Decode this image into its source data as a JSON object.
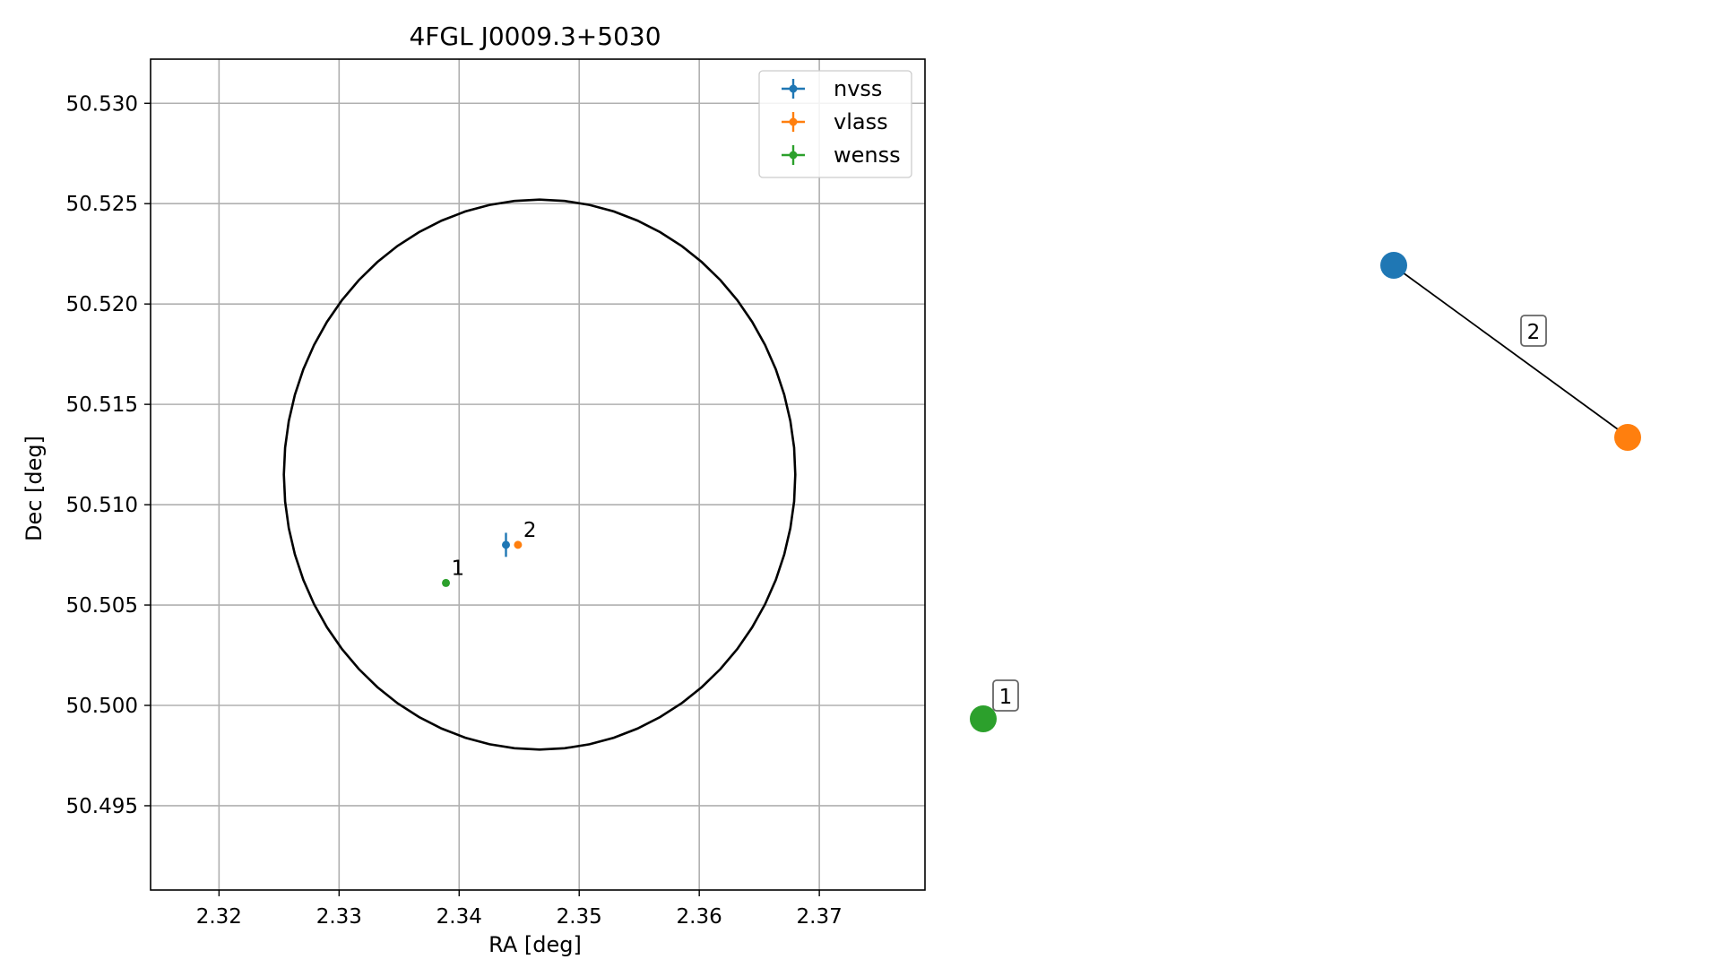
{
  "chart_data": [
    {
      "type": "scatter",
      "title": "4FGL J0009.3+5030",
      "xlabel": "RA [deg]",
      "ylabel": "Dec [deg]",
      "xlim": [
        2.3143,
        2.3788
      ],
      "ylim": [
        50.4908,
        50.5322
      ],
      "xticks": [
        "2.32",
        "2.33",
        "2.34",
        "2.35",
        "2.36",
        "2.37"
      ],
      "yticks": [
        "50.495",
        "50.500",
        "50.505",
        "50.510",
        "50.515",
        "50.520",
        "50.525",
        "50.530"
      ],
      "grid": true,
      "legend_position": "upper right",
      "series": [
        {
          "name": "nvss",
          "color": "#1f77b4",
          "points": [
            {
              "x": 2.3439,
              "y": 50.508,
              "yerr": 0.0006,
              "label": ""
            }
          ]
        },
        {
          "name": "vlass",
          "color": "#ff7f0e",
          "points": [
            {
              "x": 2.3449,
              "y": 50.508,
              "yerr": 0.0,
              "label": "2"
            }
          ]
        },
        {
          "name": "wenss",
          "color": "#2ca02c",
          "points": [
            {
              "x": 2.3389,
              "y": 50.5061,
              "yerr": 0.0,
              "label": "1"
            }
          ]
        }
      ],
      "ellipse": {
        "center_x": 2.3467,
        "center_y": 50.5115,
        "radius_x": 0.0213,
        "radius_y": 0.0137,
        "color": "#000000"
      }
    },
    {
      "type": "network",
      "nodes": [
        {
          "id": "nvss",
          "color": "#1f77b4"
        },
        {
          "id": "vlass",
          "color": "#ff7f0e"
        },
        {
          "id": "wenss",
          "color": "#2ca02c"
        }
      ],
      "edges": [
        {
          "from": "nvss",
          "to": "vlass",
          "label": "2"
        }
      ],
      "node_labels": [
        {
          "node": "wenss",
          "label": "1"
        }
      ]
    }
  ]
}
